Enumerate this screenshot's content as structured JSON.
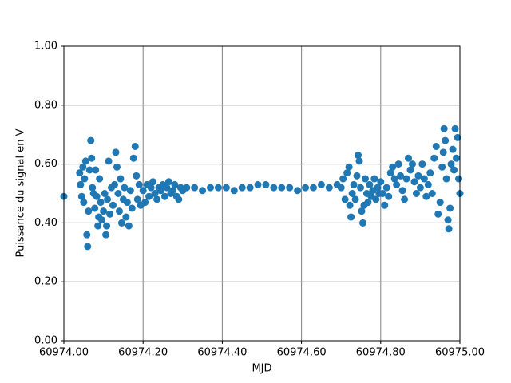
{
  "chart_data": {
    "type": "scatter",
    "xlabel": "MJD",
    "ylabel": "Puissance du signal en V",
    "color": "#1f77b4",
    "grid": true,
    "xlim": [
      60974,
      60975
    ],
    "xticks": [
      {
        "value": 60974,
        "label": "60974.00"
      },
      {
        "value": 60974.2,
        "label": "60974.20"
      },
      {
        "value": 60974.4,
        "label": "60974.40"
      },
      {
        "value": 60974.6,
        "label": "60974.60"
      },
      {
        "value": 60974.8,
        "label": "60974.80"
      },
      {
        "value": 60975,
        "label": "60975.00"
      }
    ],
    "ylim": [
      0,
      1
    ],
    "yticks": [
      {
        "value": 0,
        "label": "0.00"
      },
      {
        "value": 0.2,
        "label": "0.20"
      },
      {
        "value": 0.4,
        "label": "0.40"
      },
      {
        "value": 0.6,
        "label": "0.60"
      },
      {
        "value": 0.8,
        "label": "0.80"
      },
      {
        "value": 1,
        "label": "1.00"
      }
    ],
    "x": [
      60974.0,
      60974.04,
      60974.042,
      60974.045,
      60974.048,
      60974.05,
      60974.052,
      60974.055,
      60974.058,
      60974.06,
      60974.062,
      60974.065,
      60974.068,
      60974.07,
      60974.072,
      60974.075,
      60974.078,
      60974.08,
      60974.083,
      60974.086,
      60974.088,
      60974.09,
      60974.093,
      60974.096,
      60974.1,
      60974.103,
      60974.106,
      60974.108,
      60974.11,
      60974.113,
      60974.116,
      60974.12,
      60974.124,
      60974.128,
      60974.131,
      60974.134,
      60974.137,
      60974.14,
      60974.143,
      60974.146,
      60974.15,
      60974.153,
      60974.157,
      60974.16,
      60974.164,
      60974.168,
      60974.172,
      60974.176,
      60974.18,
      60974.183,
      60974.186,
      60974.19,
      60974.194,
      60974.2,
      60974.205,
      60974.21,
      60974.215,
      60974.22,
      60974.225,
      60974.23,
      60974.235,
      60974.24,
      60974.245,
      60974.25,
      60974.255,
      60974.26,
      60974.265,
      60974.27,
      60974.275,
      60974.28,
      60974.285,
      60974.29,
      60974.295,
      60974.3,
      60974.31,
      60974.33,
      60974.35,
      60974.37,
      60974.39,
      60974.41,
      60974.43,
      60974.45,
      60974.47,
      60974.49,
      60974.51,
      60974.53,
      60974.55,
      60974.57,
      60974.59,
      60974.61,
      60974.63,
      60974.65,
      60974.67,
      60974.69,
      60974.7,
      60974.705,
      60974.71,
      60974.715,
      60974.72,
      60974.722,
      60974.725,
      60974.728,
      60974.732,
      60974.736,
      60974.74,
      60974.743,
      60974.746,
      60974.749,
      60974.752,
      60974.755,
      60974.758,
      60974.761,
      60974.765,
      60974.768,
      60974.772,
      60974.776,
      60974.78,
      60974.784,
      60974.788,
      60974.792,
      60974.796,
      60974.8,
      60974.805,
      60974.81,
      60974.815,
      60974.82,
      60974.825,
      60974.83,
      60974.835,
      60974.84,
      60974.845,
      60974.85,
      60974.855,
      60974.86,
      60974.865,
      60974.87,
      60974.875,
      60974.88,
      60974.885,
      60974.89,
      60974.895,
      60974.9,
      60974.905,
      60974.91,
      60974.915,
      60974.92,
      60974.925,
      60974.93,
      60974.935,
      60974.94,
      60974.945,
      60974.95,
      60974.955,
      60974.958,
      60974.96,
      60974.963,
      60974.966,
      60974.97,
      60974.972,
      60974.975,
      60974.978,
      60974.982,
      60974.985,
      60974.988,
      60974.991,
      60974.994,
      60974.997,
      60975.0
    ],
    "values": [
      0.49,
      0.57,
      0.53,
      0.49,
      0.59,
      0.47,
      0.55,
      0.61,
      0.36,
      0.32,
      0.44,
      0.58,
      0.68,
      0.62,
      0.52,
      0.5,
      0.45,
      0.58,
      0.49,
      0.39,
      0.42,
      0.55,
      0.47,
      0.41,
      0.44,
      0.5,
      0.36,
      0.39,
      0.48,
      0.61,
      0.43,
      0.52,
      0.46,
      0.53,
      0.64,
      0.59,
      0.5,
      0.44,
      0.55,
      0.4,
      0.48,
      0.52,
      0.42,
      0.47,
      0.39,
      0.51,
      0.45,
      0.62,
      0.66,
      0.56,
      0.48,
      0.53,
      0.46,
      0.51,
      0.47,
      0.53,
      0.49,
      0.52,
      0.54,
      0.5,
      0.48,
      0.52,
      0.51,
      0.53,
      0.49,
      0.52,
      0.54,
      0.5,
      0.51,
      0.53,
      0.49,
      0.48,
      0.52,
      0.51,
      0.52,
      0.52,
      0.51,
      0.52,
      0.52,
      0.52,
      0.51,
      0.52,
      0.52,
      0.53,
      0.53,
      0.52,
      0.52,
      0.52,
      0.51,
      0.52,
      0.52,
      0.53,
      0.52,
      0.53,
      0.52,
      0.55,
      0.48,
      0.57,
      0.59,
      0.46,
      0.42,
      0.5,
      0.53,
      0.48,
      0.56,
      0.63,
      0.61,
      0.52,
      0.44,
      0.4,
      0.46,
      0.55,
      0.5,
      0.47,
      0.53,
      0.49,
      0.51,
      0.55,
      0.48,
      0.52,
      0.5,
      0.54,
      0.5,
      0.46,
      0.52,
      0.49,
      0.57,
      0.59,
      0.55,
      0.53,
      0.6,
      0.56,
      0.51,
      0.48,
      0.55,
      0.62,
      0.58,
      0.6,
      0.54,
      0.5,
      0.56,
      0.52,
      0.6,
      0.55,
      0.49,
      0.53,
      0.57,
      0.5,
      0.62,
      0.66,
      0.43,
      0.47,
      0.59,
      0.64,
      0.72,
      0.68,
      0.55,
      0.41,
      0.38,
      0.45,
      0.6,
      0.65,
      0.58,
      0.72,
      0.62,
      0.69,
      0.55,
      0.5
    ]
  }
}
